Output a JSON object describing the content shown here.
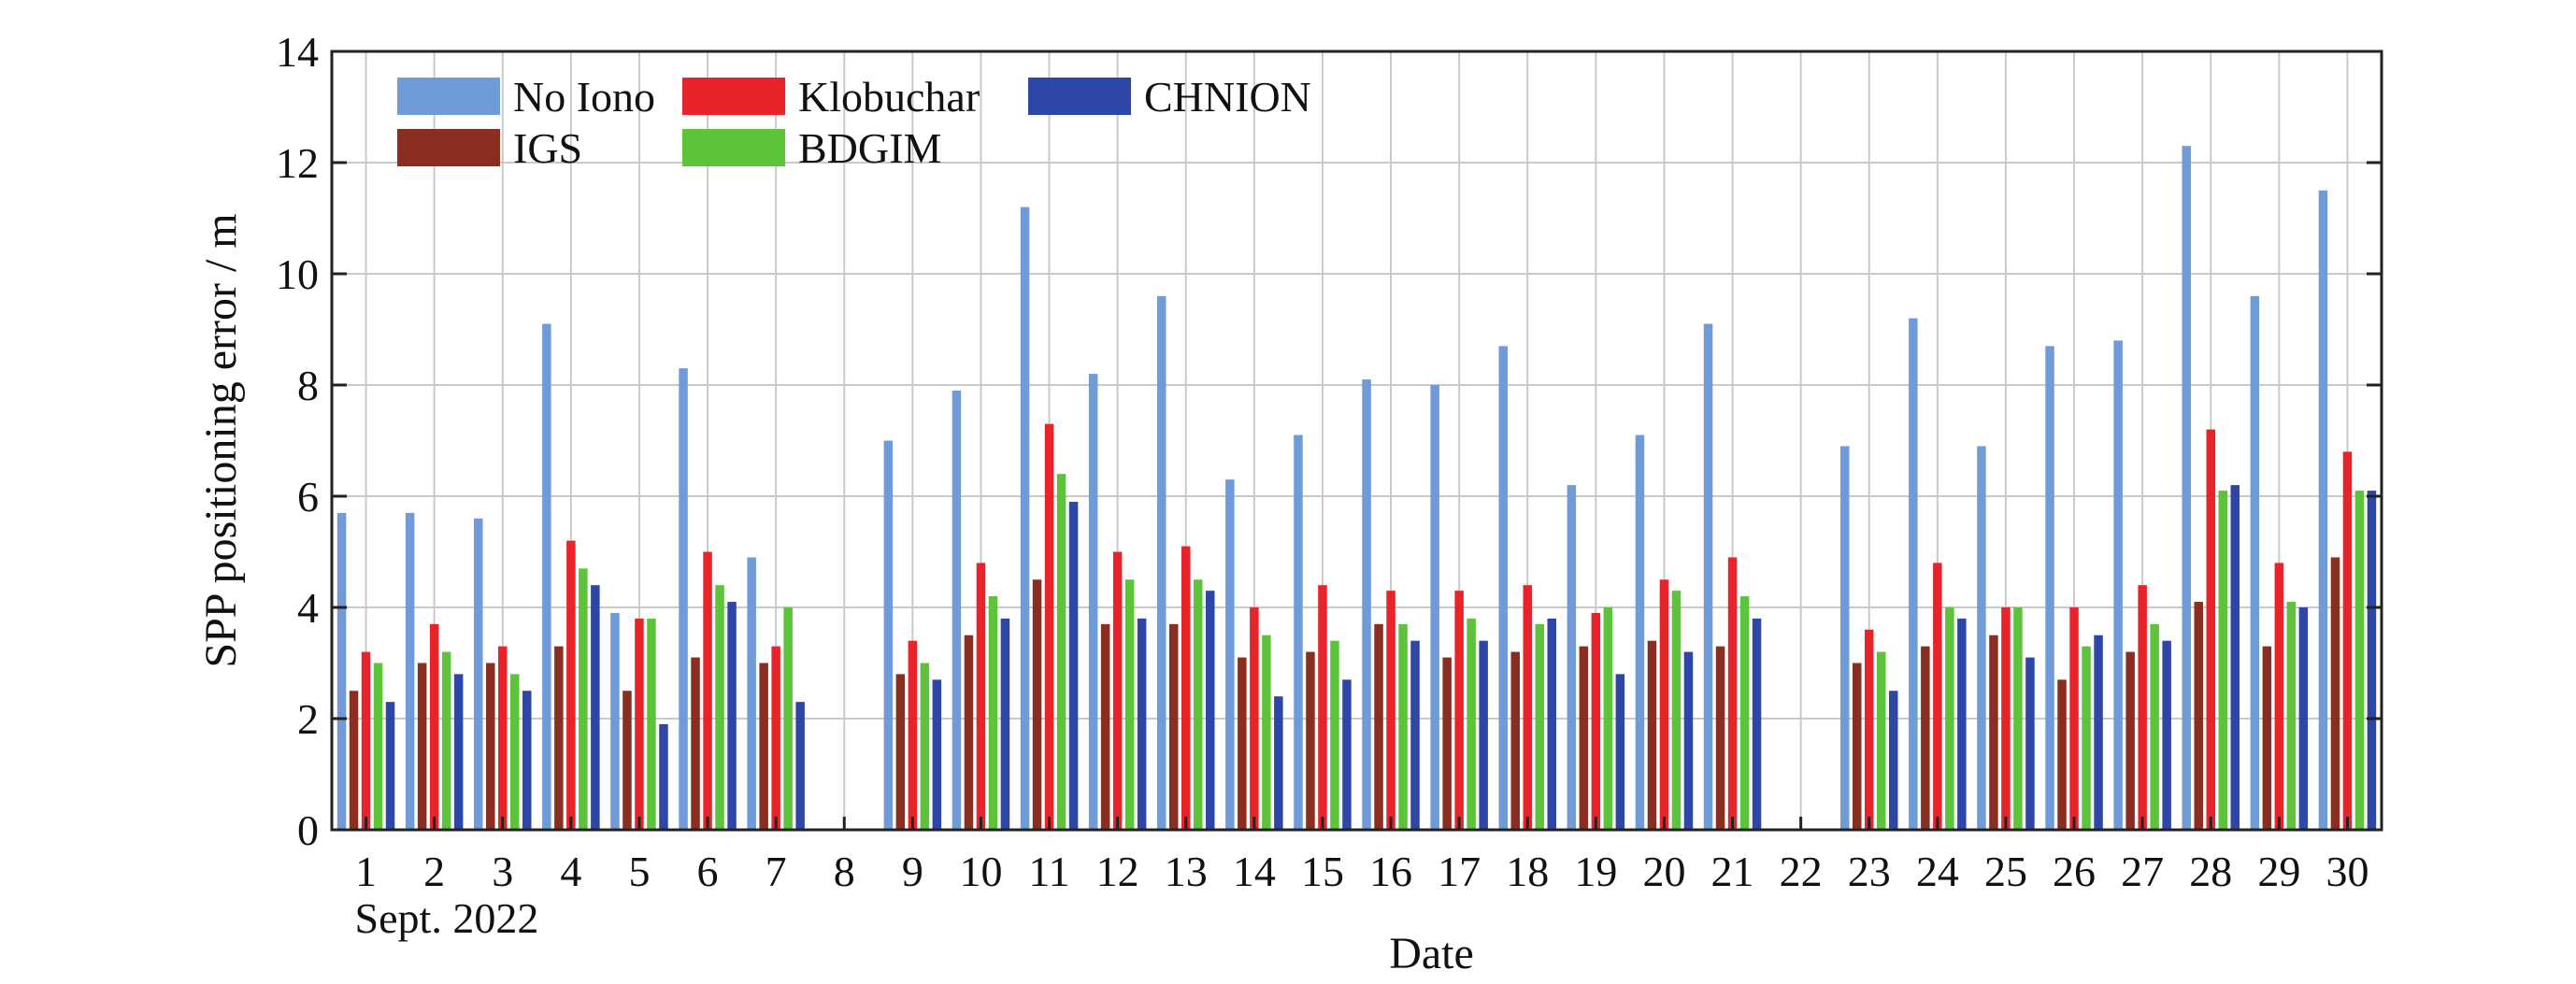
{
  "chart_data": {
    "type": "bar",
    "xlabel": "Date",
    "ylabel": "SPP positioning error / m",
    "x_annotation": "Sept. 2022",
    "ylim": [
      0,
      14
    ],
    "yticks": [
      0,
      2,
      4,
      6,
      8,
      10,
      12,
      14
    ],
    "grid": true,
    "legend_position": "top-left",
    "categories": [
      "1",
      "2",
      "3",
      "4",
      "5",
      "6",
      "7",
      "8",
      "9",
      "10",
      "11",
      "12",
      "13",
      "14",
      "15",
      "16",
      "17",
      "18",
      "19",
      "20",
      "21",
      "22",
      "23",
      "24",
      "25",
      "26",
      "27",
      "28",
      "29",
      "30"
    ],
    "series": [
      {
        "name": "No Iono",
        "color": "#6f9bd9",
        "values": [
          5.7,
          5.7,
          5.6,
          9.1,
          3.9,
          8.3,
          4.9,
          null,
          7.0,
          7.9,
          11.2,
          8.2,
          9.6,
          6.3,
          7.1,
          8.1,
          8.0,
          8.7,
          6.2,
          7.1,
          9.1,
          null,
          6.9,
          9.2,
          6.9,
          8.7,
          8.8,
          12.3,
          9.6,
          11.5
        ]
      },
      {
        "name": "IGS",
        "color": "#8b2e22",
        "values": [
          2.5,
          3.0,
          3.0,
          3.3,
          2.5,
          3.1,
          3.0,
          null,
          2.8,
          3.5,
          4.5,
          3.7,
          3.7,
          3.1,
          3.2,
          3.7,
          3.1,
          3.2,
          3.3,
          3.4,
          3.3,
          null,
          3.0,
          3.3,
          3.5,
          2.7,
          3.2,
          4.1,
          3.3,
          4.9
        ]
      },
      {
        "name": "Klobuchar",
        "color": "#e8232a",
        "values": [
          3.2,
          3.7,
          3.3,
          5.2,
          3.8,
          5.0,
          3.3,
          null,
          3.4,
          4.8,
          7.3,
          5.0,
          5.1,
          4.0,
          4.4,
          4.3,
          4.3,
          4.4,
          3.9,
          4.5,
          4.9,
          null,
          3.6,
          4.8,
          4.0,
          4.0,
          4.4,
          7.2,
          4.8,
          6.8
        ]
      },
      {
        "name": "BDGIM",
        "color": "#5cc33b",
        "values": [
          3.0,
          3.2,
          2.8,
          4.7,
          3.8,
          4.4,
          4.0,
          null,
          3.0,
          4.2,
          6.4,
          4.5,
          4.5,
          3.5,
          3.4,
          3.7,
          3.8,
          3.7,
          4.0,
          4.3,
          4.2,
          null,
          3.2,
          4.0,
          4.0,
          3.3,
          3.7,
          6.1,
          4.1,
          6.1
        ]
      },
      {
        "name": "CHNION",
        "color": "#2e47a6",
        "values": [
          2.3,
          2.8,
          2.5,
          4.4,
          1.9,
          4.1,
          2.3,
          null,
          2.7,
          3.8,
          5.9,
          3.8,
          4.3,
          2.4,
          2.7,
          3.4,
          3.4,
          3.8,
          2.8,
          3.2,
          3.8,
          null,
          2.5,
          3.8,
          3.1,
          3.5,
          3.4,
          6.2,
          4.0,
          6.1
        ]
      }
    ],
    "legend_rows": [
      [
        "No Iono",
        "Klobuchar",
        "CHNION"
      ],
      [
        "IGS",
        "BDGIM"
      ]
    ]
  }
}
